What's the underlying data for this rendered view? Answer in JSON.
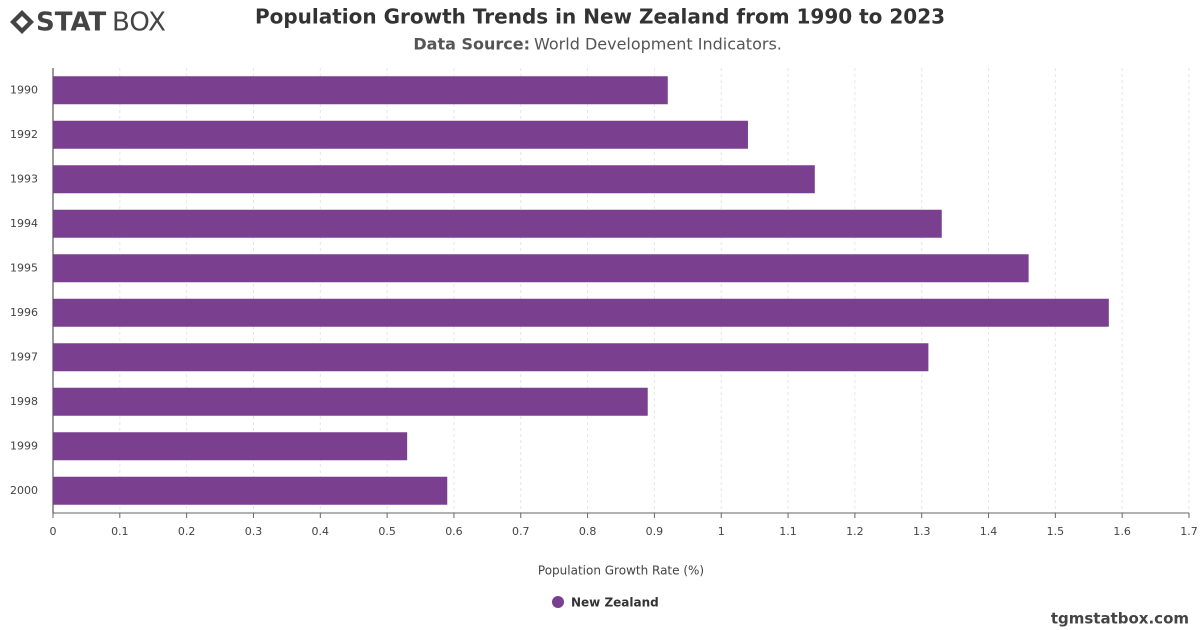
{
  "logo": {
    "bold": "STAT",
    "light": "BOX"
  },
  "footer": "tgmstatbox.com",
  "chart_data": {
    "type": "hbar",
    "title": "Population Growth Trends in New Zealand from 1990 to 2023",
    "subtitle_label": "Data Source:",
    "subtitle": "World Development Indicators.",
    "x_label": "Population Growth Rate (%)",
    "categories": [
      "1990",
      "1992",
      "1993",
      "1994",
      "1995",
      "1996",
      "1997",
      "1998",
      "1999",
      "2000"
    ],
    "series": [
      {
        "name": "New Zealand",
        "color": "#7b3f8f",
        "values": [
          0.92,
          1.04,
          1.14,
          1.33,
          1.46,
          1.58,
          1.31,
          0.89,
          0.53,
          0.59
        ]
      }
    ],
    "xlim": [
      0,
      1.7
    ],
    "xticks": [
      0,
      0.1,
      0.2,
      0.3,
      0.4,
      0.5,
      0.6,
      0.7,
      0.8,
      0.9,
      1,
      1.1,
      1.2,
      1.3,
      1.4,
      1.5,
      1.6,
      1.7
    ],
    "grid": true
  }
}
